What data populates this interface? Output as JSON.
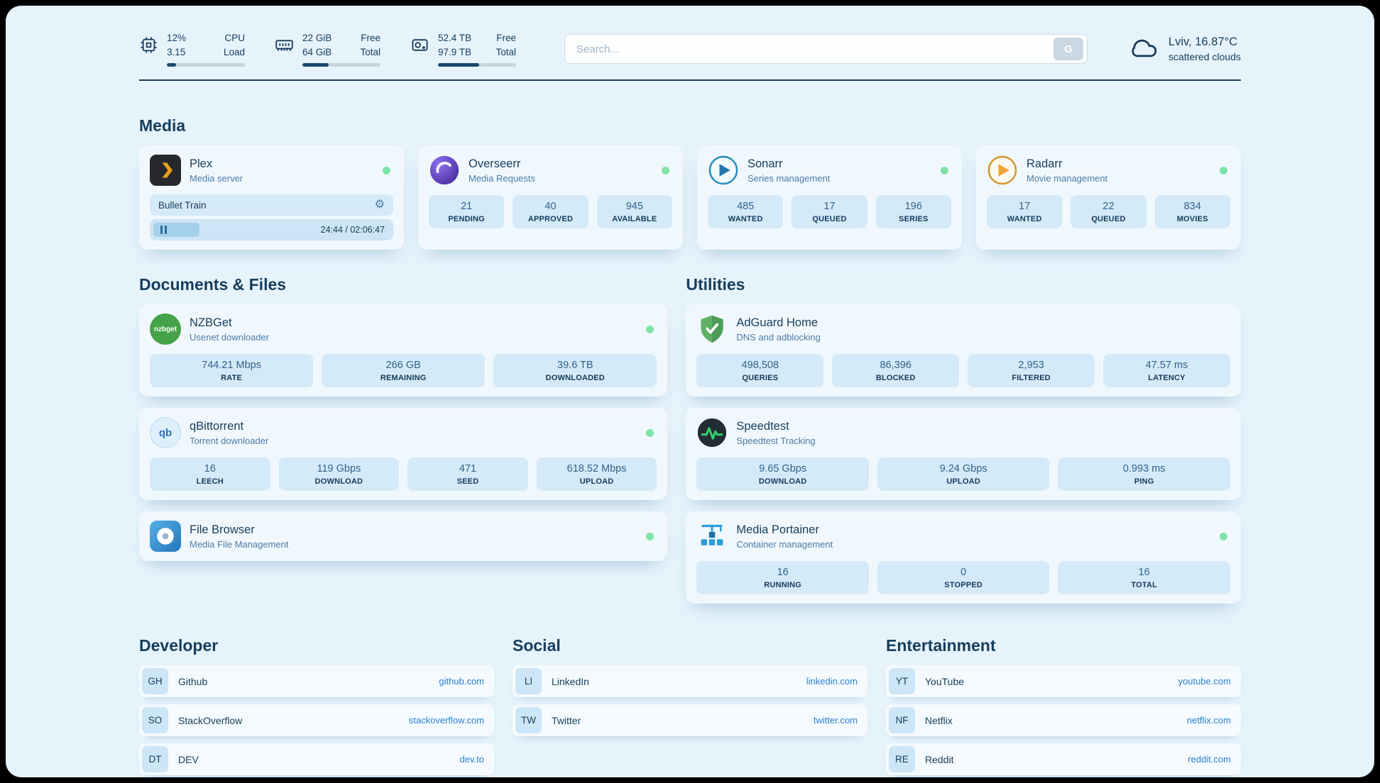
{
  "topbar": {
    "cpu": {
      "value": "12%",
      "load": "3.15",
      "label_top": "CPU",
      "label_bottom": "Load",
      "bar_pct": 12
    },
    "ram": {
      "free": "22 GiB",
      "total": "64 GiB",
      "label_top": "Free",
      "label_bottom": "Total",
      "bar_pct": 34
    },
    "disk": {
      "free": "52.4 TB",
      "total": "97.9 TB",
      "label_top": "Free",
      "label_bottom": "Total",
      "bar_pct": 53
    },
    "search": {
      "placeholder": "Search...",
      "button_label": "G"
    },
    "weather": {
      "location": "Lviv, 16.87°C",
      "condition": "scattered clouds"
    }
  },
  "sections": {
    "media": "Media",
    "documents": "Documents & Files",
    "utilities": "Utilities"
  },
  "apps": {
    "plex": {
      "name": "Plex",
      "subtitle": "Media server",
      "now_playing": "Bullet Train",
      "time": "24:44 / 02:06:47",
      "progress_pct": 19
    },
    "overseerr": {
      "name": "Overseerr",
      "subtitle": "Media Requests",
      "stats": [
        {
          "value": "21",
          "label": "PENDING"
        },
        {
          "value": "40",
          "label": "APPROVED"
        },
        {
          "value": "945",
          "label": "AVAILABLE"
        }
      ]
    },
    "sonarr": {
      "name": "Sonarr",
      "subtitle": "Series management",
      "stats": [
        {
          "value": "485",
          "label": "WANTED"
        },
        {
          "value": "17",
          "label": "QUEUED"
        },
        {
          "value": "196",
          "label": "SERIES"
        }
      ]
    },
    "radarr": {
      "name": "Radarr",
      "subtitle": "Movie management",
      "stats": [
        {
          "value": "17",
          "label": "WANTED"
        },
        {
          "value": "22",
          "label": "QUEUED"
        },
        {
          "value": "834",
          "label": "MOVIES"
        }
      ]
    },
    "nzbget": {
      "name": "NZBGet",
      "subtitle": "Usenet downloader",
      "icon_text": "nzbget",
      "stats": [
        {
          "value": "744.21 Mbps",
          "label": "RATE"
        },
        {
          "value": "266 GB",
          "label": "REMAINING"
        },
        {
          "value": "39.6 TB",
          "label": "DOWNLOADED"
        }
      ]
    },
    "qbittorrent": {
      "name": "qBittorrent",
      "subtitle": "Torrent downloader",
      "icon_text": "qb",
      "stats": [
        {
          "value": "16",
          "label": "LEECH"
        },
        {
          "value": "119 Gbps",
          "label": "DOWNLOAD"
        },
        {
          "value": "471",
          "label": "SEED"
        },
        {
          "value": "618.52 Mbps",
          "label": "UPLOAD"
        }
      ]
    },
    "filebrowser": {
      "name": "File Browser",
      "subtitle": "Media File Management"
    },
    "adguard": {
      "name": "AdGuard Home",
      "subtitle": "DNS and adblocking",
      "stats": [
        {
          "value": "498,508",
          "label": "QUERIES"
        },
        {
          "value": "86,396",
          "label": "BLOCKED"
        },
        {
          "value": "2,953",
          "label": "FILTERED"
        },
        {
          "value": "47.57 ms",
          "label": "LATENCY"
        }
      ]
    },
    "speedtest": {
      "name": "Speedtest",
      "subtitle": "Speedtest Tracking",
      "stats": [
        {
          "value": "9.65 Gbps",
          "label": "DOWNLOAD"
        },
        {
          "value": "9.24 Gbps",
          "label": "UPLOAD"
        },
        {
          "value": "0.993 ms",
          "label": "PING"
        }
      ]
    },
    "portainer": {
      "name": "Media Portainer",
      "subtitle": "Container management",
      "stats": [
        {
          "value": "16",
          "label": "RUNNING"
        },
        {
          "value": "0",
          "label": "STOPPED"
        },
        {
          "value": "16",
          "label": "TOTAL"
        }
      ]
    }
  },
  "bookmarks": {
    "developer": {
      "title": "Developer",
      "items": [
        {
          "abbr": "GH",
          "name": "Github",
          "url": "github.com"
        },
        {
          "abbr": "SO",
          "name": "StackOverflow",
          "url": "stackoverflow.com"
        },
        {
          "abbr": "DT",
          "name": "DEV",
          "url": "dev.to"
        }
      ]
    },
    "social": {
      "title": "Social",
      "items": [
        {
          "abbr": "LI",
          "name": "LinkedIn",
          "url": "linkedin.com"
        },
        {
          "abbr": "TW",
          "name": "Twitter",
          "url": "twitter.com"
        }
      ]
    },
    "entertainment": {
      "title": "Entertainment",
      "items": [
        {
          "abbr": "YT",
          "name": "YouTube",
          "url": "youtube.com"
        },
        {
          "abbr": "NF",
          "name": "Netflix",
          "url": "netflix.com"
        },
        {
          "abbr": "RE",
          "name": "Reddit",
          "url": "reddit.com"
        }
      ]
    }
  },
  "colors": {
    "page_background": "#e6f3fb",
    "card_background": "#f1f8fd",
    "stat_background": "#d4eaf8",
    "text_primary": "#163d5c",
    "text_secondary": "#4a7ba6",
    "link_blue": "#2b7fd4",
    "status_online_green": "#7fe3a8",
    "plex_yellow": "#e8a11c",
    "adguard_green": "#5fb065",
    "speedtest_green": "#35d06a",
    "portainer_blue": "#2b9fd8",
    "divider": "#1b3c58"
  }
}
